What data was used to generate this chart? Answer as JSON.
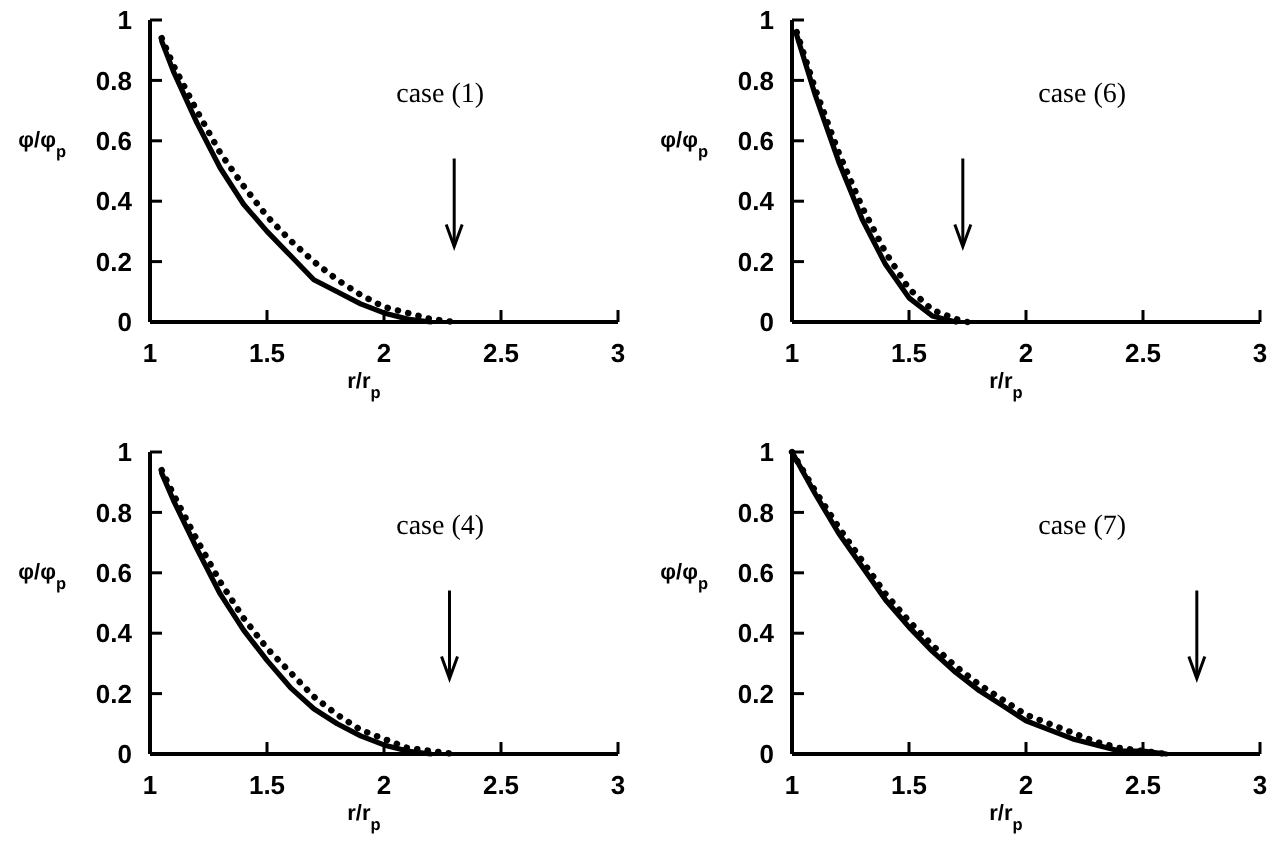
{
  "chart_data": [
    {
      "type": "line",
      "xlabel": "r/r$_{p}$",
      "ylabel": "φ/φ$_{p}$",
      "xlim": [
        1,
        3
      ],
      "ylim": [
        0,
        1
      ],
      "xticks": [
        1,
        1.5,
        2,
        2.5,
        3
      ],
      "yticks": [
        0,
        0.2,
        0.4,
        0.6,
        0.8,
        1
      ],
      "annotations": [
        "case (1)"
      ],
      "ref_lines": [
        {
          "axis": "x",
          "value": 2.3
        }
      ],
      "series": [
        {
          "color": "#000000",
          "line_style": "solid",
          "x": [
            1.05,
            1.1,
            1.2,
            1.3,
            1.4,
            1.5,
            1.6,
            1.7,
            1.8,
            1.9,
            2.0,
            2.1,
            2.2
          ],
          "values": [
            0.93,
            0.83,
            0.66,
            0.51,
            0.39,
            0.3,
            0.22,
            0.14,
            0.1,
            0.06,
            0.03,
            0.01,
            0
          ]
        },
        {
          "color": "#000000",
          "line_style": "dotted",
          "x": [
            1.05,
            1.1,
            1.2,
            1.3,
            1.4,
            1.5,
            1.6,
            1.7,
            1.8,
            1.9,
            2.0,
            2.1,
            2.2,
            2.3
          ],
          "values": [
            0.94,
            0.85,
            0.7,
            0.56,
            0.45,
            0.35,
            0.27,
            0.2,
            0.14,
            0.09,
            0.05,
            0.03,
            0.01,
            0
          ]
        }
      ]
    },
    {
      "type": "line",
      "xlabel": "r/r$_{p}$",
      "ylabel": "φ/φ$_{p}$",
      "xlim": [
        1,
        3
      ],
      "ylim": [
        0,
        1
      ],
      "xticks": [
        1,
        1.5,
        2,
        2.5,
        3
      ],
      "yticks": [
        0,
        0.2,
        0.4,
        0.6,
        0.8,
        1
      ],
      "annotations": [
        "case (6)"
      ],
      "ref_lines": [
        {
          "axis": "x",
          "value": 1.73
        }
      ],
      "series": [
        {
          "color": "#000000",
          "line_style": "solid",
          "x": [
            1.02,
            1.1,
            1.2,
            1.3,
            1.4,
            1.5,
            1.6,
            1.7
          ],
          "values": [
            0.95,
            0.75,
            0.53,
            0.34,
            0.19,
            0.08,
            0.02,
            0
          ]
        },
        {
          "color": "#000000",
          "line_style": "dotted",
          "x": [
            1.02,
            1.1,
            1.2,
            1.3,
            1.4,
            1.5,
            1.6,
            1.7,
            1.75
          ],
          "values": [
            0.96,
            0.77,
            0.56,
            0.38,
            0.23,
            0.11,
            0.04,
            0.01,
            0
          ]
        }
      ]
    },
    {
      "type": "line",
      "xlabel": "r/r$_{p}$",
      "ylabel": "φ/φ$_{p}$",
      "xlim": [
        1,
        3
      ],
      "ylim": [
        0,
        1
      ],
      "xticks": [
        1,
        1.5,
        2,
        2.5,
        3
      ],
      "yticks": [
        0,
        0.2,
        0.4,
        0.6,
        0.8,
        1
      ],
      "annotations": [
        "case (4)"
      ],
      "ref_lines": [
        {
          "axis": "x",
          "value": 2.28
        }
      ],
      "series": [
        {
          "color": "#000000",
          "line_style": "solid",
          "x": [
            1.05,
            1.1,
            1.2,
            1.3,
            1.4,
            1.5,
            1.6,
            1.7,
            1.8,
            1.9,
            2.0,
            2.1,
            2.2
          ],
          "values": [
            0.93,
            0.84,
            0.68,
            0.53,
            0.41,
            0.31,
            0.22,
            0.15,
            0.1,
            0.06,
            0.03,
            0.01,
            0
          ]
        },
        {
          "color": "#000000",
          "line_style": "dotted",
          "x": [
            1.05,
            1.1,
            1.2,
            1.3,
            1.4,
            1.5,
            1.6,
            1.7,
            1.8,
            1.9,
            2.0,
            2.1,
            2.2,
            2.3
          ],
          "values": [
            0.94,
            0.86,
            0.71,
            0.57,
            0.45,
            0.35,
            0.27,
            0.19,
            0.13,
            0.08,
            0.05,
            0.02,
            0.01,
            0
          ]
        }
      ]
    },
    {
      "type": "line",
      "xlabel": "r/r$_{p}$",
      "ylabel": "φ/φ$_{p}$",
      "xlim": [
        1,
        3
      ],
      "ylim": [
        0,
        1
      ],
      "xticks": [
        1,
        1.5,
        2,
        2.5,
        3
      ],
      "yticks": [
        0,
        0.2,
        0.4,
        0.6,
        0.8,
        1
      ],
      "annotations": [
        "case (7)"
      ],
      "ref_lines": [
        {
          "axis": "x",
          "value": 2.73
        }
      ],
      "series": [
        {
          "color": "#000000",
          "line_style": "solid",
          "x": [
            1.0,
            1.1,
            1.2,
            1.3,
            1.4,
            1.5,
            1.6,
            1.7,
            1.8,
            1.9,
            2.0,
            2.1,
            2.2,
            2.3,
            2.4,
            2.5,
            2.6
          ],
          "values": [
            1.0,
            0.86,
            0.73,
            0.62,
            0.51,
            0.42,
            0.34,
            0.27,
            0.21,
            0.16,
            0.11,
            0.08,
            0.05,
            0.03,
            0.01,
            0.01,
            0
          ]
        },
        {
          "color": "#000000",
          "line_style": "dotted",
          "x": [
            1.0,
            1.1,
            1.2,
            1.3,
            1.4,
            1.5,
            1.6,
            1.7,
            1.8,
            1.9,
            2.0,
            2.1,
            2.2,
            2.3,
            2.4,
            2.5,
            2.6
          ],
          "values": [
            1.0,
            0.87,
            0.75,
            0.64,
            0.53,
            0.44,
            0.36,
            0.29,
            0.23,
            0.18,
            0.13,
            0.1,
            0.07,
            0.04,
            0.02,
            0.01,
            0
          ]
        }
      ]
    }
  ]
}
